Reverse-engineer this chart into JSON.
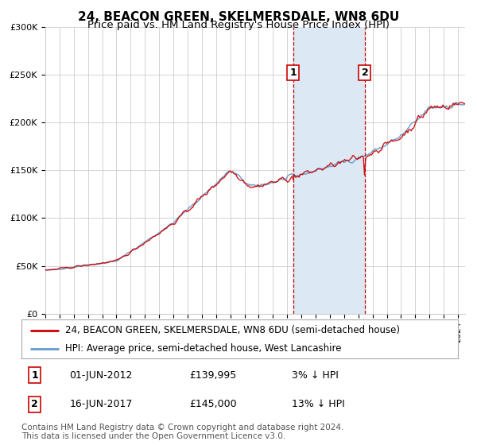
{
  "title": "24, BEACON GREEN, SKELMERSDALE, WN8 6DU",
  "subtitle": "Price paid vs. HM Land Registry's House Price Index (HPI)",
  "ylim": [
    0,
    300000
  ],
  "yticks": [
    0,
    50000,
    100000,
    150000,
    200000,
    250000,
    300000
  ],
  "ytick_labels": [
    "£0",
    "£50K",
    "£100K",
    "£150K",
    "£200K",
    "£250K",
    "£300K"
  ],
  "legend_line1": "24, BEACON GREEN, SKELMERSDALE, WN8 6DU (semi-detached house)",
  "legend_line2": "HPI: Average price, semi-detached house, West Lancashire",
  "transaction1_date": "01-JUN-2012",
  "transaction1_price": 139995,
  "transaction1_year": 2012.42,
  "transaction2_date": "16-JUN-2017",
  "transaction2_price": 145000,
  "transaction2_year": 2017.46,
  "footer": "Contains HM Land Registry data © Crown copyright and database right 2024.\nThis data is licensed under the Open Government Licence v3.0.",
  "red_color": "#cc0000",
  "blue_color": "#6699cc",
  "shade_color": "#dce9f5",
  "background_color": "#ffffff",
  "grid_color": "#cccccc",
  "title_fontsize": 11,
  "subtitle_fontsize": 9.5,
  "tick_fontsize": 8,
  "legend_fontsize": 8.5,
  "ann_fontsize": 9,
  "footer_fontsize": 7.5
}
